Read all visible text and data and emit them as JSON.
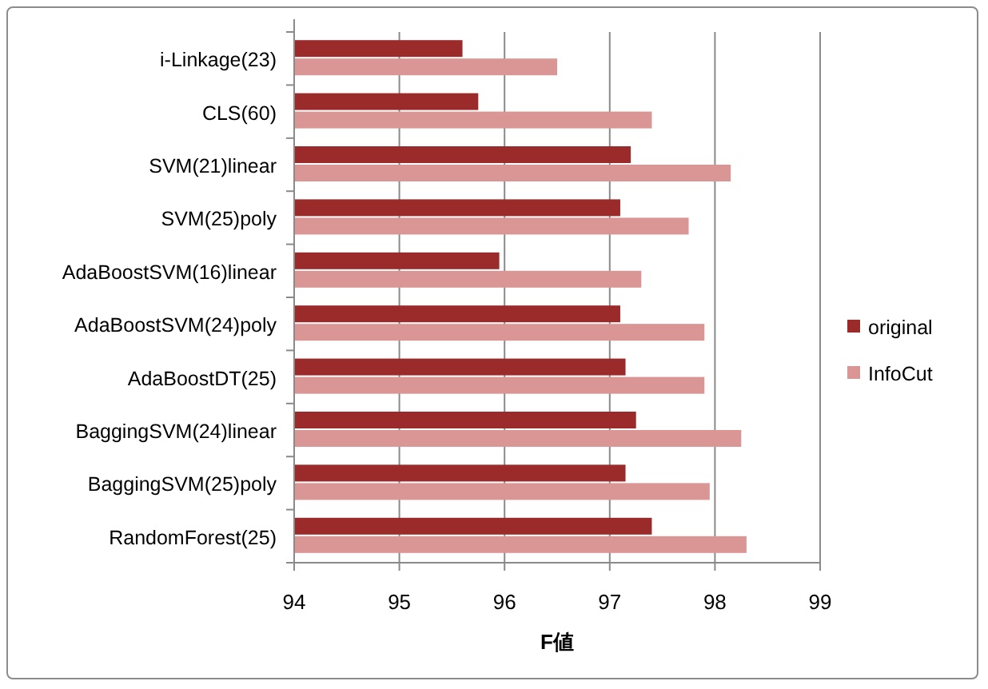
{
  "chart_data": {
    "type": "bar",
    "orientation": "horizontal",
    "xlabel": "F値",
    "categories": [
      "i-Linkage(23)",
      "CLS(60)",
      "SVM(21)linear",
      "SVM(25)poly",
      "AdaBoostSVM(16)linear",
      "AdaBoostSVM(24)poly",
      "AdaBoostDT(25)",
      "BaggingSVM(24)linear",
      "BaggingSVM(25)poly",
      "RandomForest(25)"
    ],
    "series": [
      {
        "name": "original",
        "color": "#9b2b2b",
        "values": [
          95.6,
          95.75,
          97.2,
          97.1,
          95.95,
          97.1,
          97.15,
          97.25,
          97.15,
          97.4
        ]
      },
      {
        "name": "InfoCut",
        "color": "#d99694",
        "values": [
          96.5,
          97.4,
          98.15,
          97.75,
          97.3,
          97.9,
          97.9,
          98.25,
          97.95,
          98.3
        ]
      }
    ],
    "xlim": [
      94,
      99
    ],
    "xticks": [
      94,
      95,
      96,
      97,
      98,
      99
    ],
    "grid": "x",
    "legend": "right"
  }
}
